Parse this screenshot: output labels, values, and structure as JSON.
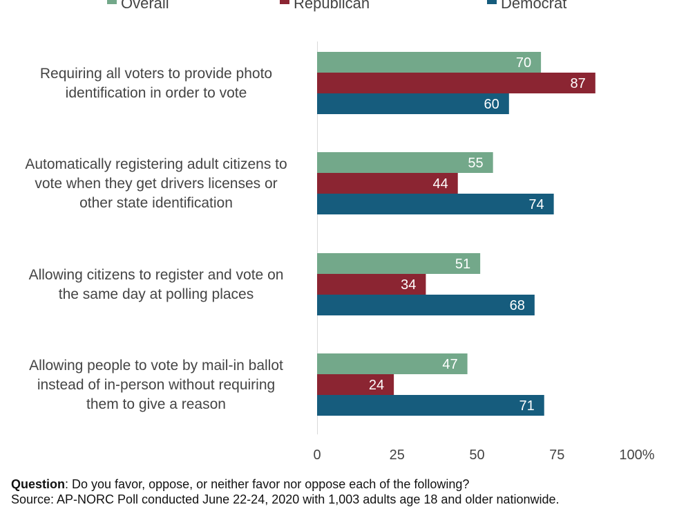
{
  "chart_data": {
    "type": "bar",
    "orientation": "horizontal",
    "categories": [
      [
        "Requiring all voters to provide photo",
        "identification in order to vote"
      ],
      [
        "Automatically registering adult citizens to",
        "vote when they get drivers licenses or",
        "other state identification"
      ],
      [
        "Allowing citizens to register and vote on",
        "the same day at polling places"
      ],
      [
        "Allowing people to vote by mail-in ballot",
        "instead of in-person without requiring",
        "them to give a reason"
      ]
    ],
    "series": [
      {
        "name": "Overall",
        "values": [
          70,
          55,
          51,
          47
        ],
        "color": "#73a88a"
      },
      {
        "name": "Republican",
        "values": [
          87,
          44,
          34,
          24
        ],
        "color": "#8b2532"
      },
      {
        "name": "Democrat",
        "values": [
          60,
          74,
          68,
          71
        ],
        "color": "#165c7d"
      }
    ],
    "xlim": [
      0,
      100
    ],
    "xticks": [
      "0",
      "25",
      "50",
      "75",
      "100%"
    ],
    "legend_position": "top"
  },
  "footer": {
    "question_label": "Question",
    "question_text": ": Do you favor, oppose, or neither favor nor oppose each of the following?",
    "source_text": "Source: AP-NORC Poll conducted June 22-24, 2020 with 1,003 adults age 18 and older nationwide."
  }
}
